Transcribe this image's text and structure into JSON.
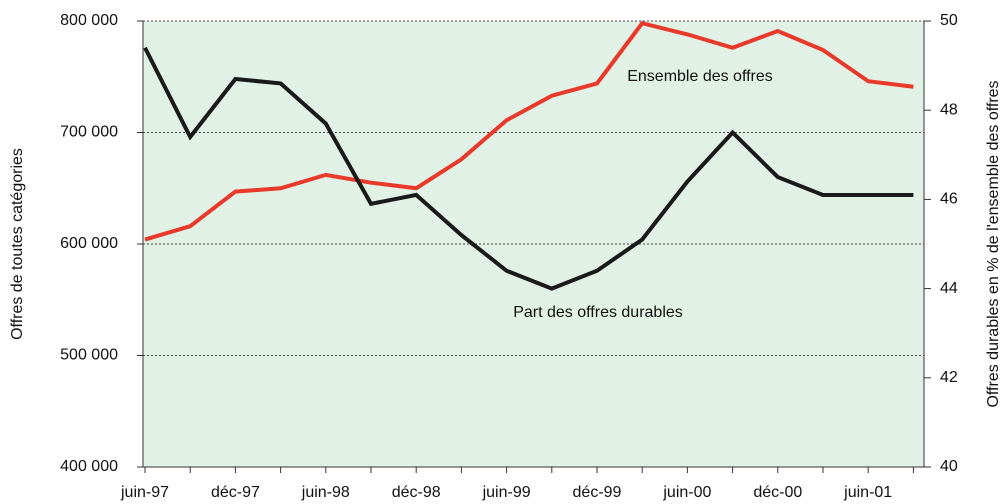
{
  "chart_data": {
    "type": "line",
    "ylabel": "Offres de toutes catégories",
    "y2label": "Offres durables en % de l'ensemble des offres",
    "categories": [
      "juin-97",
      null,
      "déc-97",
      null,
      "juin-98",
      null,
      "déc-98",
      null,
      "juin-99",
      null,
      "déc-99",
      null,
      "juin-00",
      null,
      "déc-00",
      null,
      "juin-01",
      null
    ],
    "series": [
      {
        "name": "Ensemble des offres",
        "color": "#e8392b",
        "axis": "y",
        "values": [
          604000,
          616000,
          647000,
          650000,
          662000,
          655000,
          650000,
          676000,
          711000,
          733000,
          744000,
          798000,
          788000,
          776000,
          791000,
          774000,
          746000,
          741000
        ]
      },
      {
        "name": "Part des offres durables",
        "color": "#1a1a1a",
        "axis": "y2",
        "values": [
          49.4,
          47.4,
          48.7,
          48.6,
          47.7,
          45.9,
          46.1,
          45.2,
          44.4,
          44.0,
          44.4,
          45.1,
          46.4,
          47.5,
          46.5,
          46.1,
          46.1,
          46.1
        ]
      }
    ],
    "ylim": [
      400000,
      800000
    ],
    "yticks": [
      {
        "value": 400000,
        "label": "400 000"
      },
      {
        "value": 500000,
        "label": "500 000"
      },
      {
        "value": 600000,
        "label": "600 000"
      },
      {
        "value": 700000,
        "label": "700 000"
      },
      {
        "value": 800000,
        "label": "800 000"
      }
    ],
    "y2lim": [
      40,
      50
    ],
    "y2ticks": [
      40,
      42,
      44,
      46,
      48,
      50
    ],
    "grid": true,
    "background": "#e2f1e5"
  }
}
